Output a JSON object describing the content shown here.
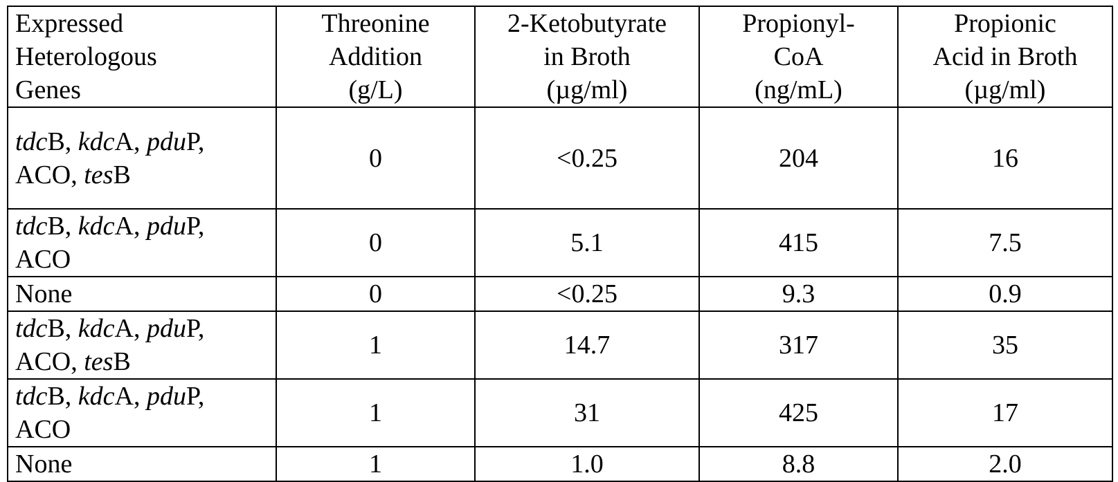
{
  "table": {
    "headers": [
      [
        "Expressed",
        "Heterologous",
        "Genes"
      ],
      [
        "Threonine",
        "Addition",
        "(g/L)"
      ],
      [
        "2-Ketobutyrate",
        "in Broth",
        "(µg/ml)"
      ],
      [
        "Propionyl-",
        "CoA",
        "(ng/mL)"
      ],
      [
        "Propionic",
        "Acid in Broth",
        "(µg/ml)"
      ]
    ],
    "rows": [
      {
        "genes_line1": {
          "a_i": "tdc",
          "a": "B, ",
          "b_i": "kdc",
          "b": "A, ",
          "c_i": "pdu",
          "c": "P,"
        },
        "genes_line2": {
          "pre": "ACO, ",
          "d_i": "tes",
          "d": "B"
        },
        "threonine": "0",
        "ketobutyrate": "<0.25",
        "propionyl_coa": "204",
        "propionic_acid": "16"
      },
      {
        "genes_line1": {
          "a_i": "tdc",
          "a": "B, ",
          "b_i": "kdc",
          "b": "A, ",
          "c_i": "pdu",
          "c": "P,"
        },
        "genes_line2_text": "ACO",
        "threonine": "0",
        "ketobutyrate": "5.1",
        "propionyl_coa": "415",
        "propionic_acid": "7.5"
      },
      {
        "genes_text": "None",
        "threonine": "0",
        "ketobutyrate": "<0.25",
        "propionyl_coa": "9.3",
        "propionic_acid": "0.9"
      },
      {
        "genes_line1": {
          "a_i": "tdc",
          "a": "B, ",
          "b_i": "kdc",
          "b": "A, ",
          "c_i": "pdu",
          "c": "P,"
        },
        "genes_line2": {
          "pre": "ACO, ",
          "d_i": "tes",
          "d": "B"
        },
        "threonine": "1",
        "ketobutyrate": "14.7",
        "propionyl_coa": "317",
        "propionic_acid": "35"
      },
      {
        "genes_line1": {
          "a_i": "tdc",
          "a": "B, ",
          "b_i": "kdc",
          "b": "A, ",
          "c_i": "pdu",
          "c": "P,"
        },
        "genes_line2_text": "ACO",
        "threonine": "1",
        "ketobutyrate": "31",
        "propionyl_coa": "425",
        "propionic_acid": "17"
      },
      {
        "genes_text": "None",
        "threonine": "1",
        "ketobutyrate": "1.0",
        "propionyl_coa": "8.8",
        "propionic_acid": "2.0"
      }
    ]
  }
}
